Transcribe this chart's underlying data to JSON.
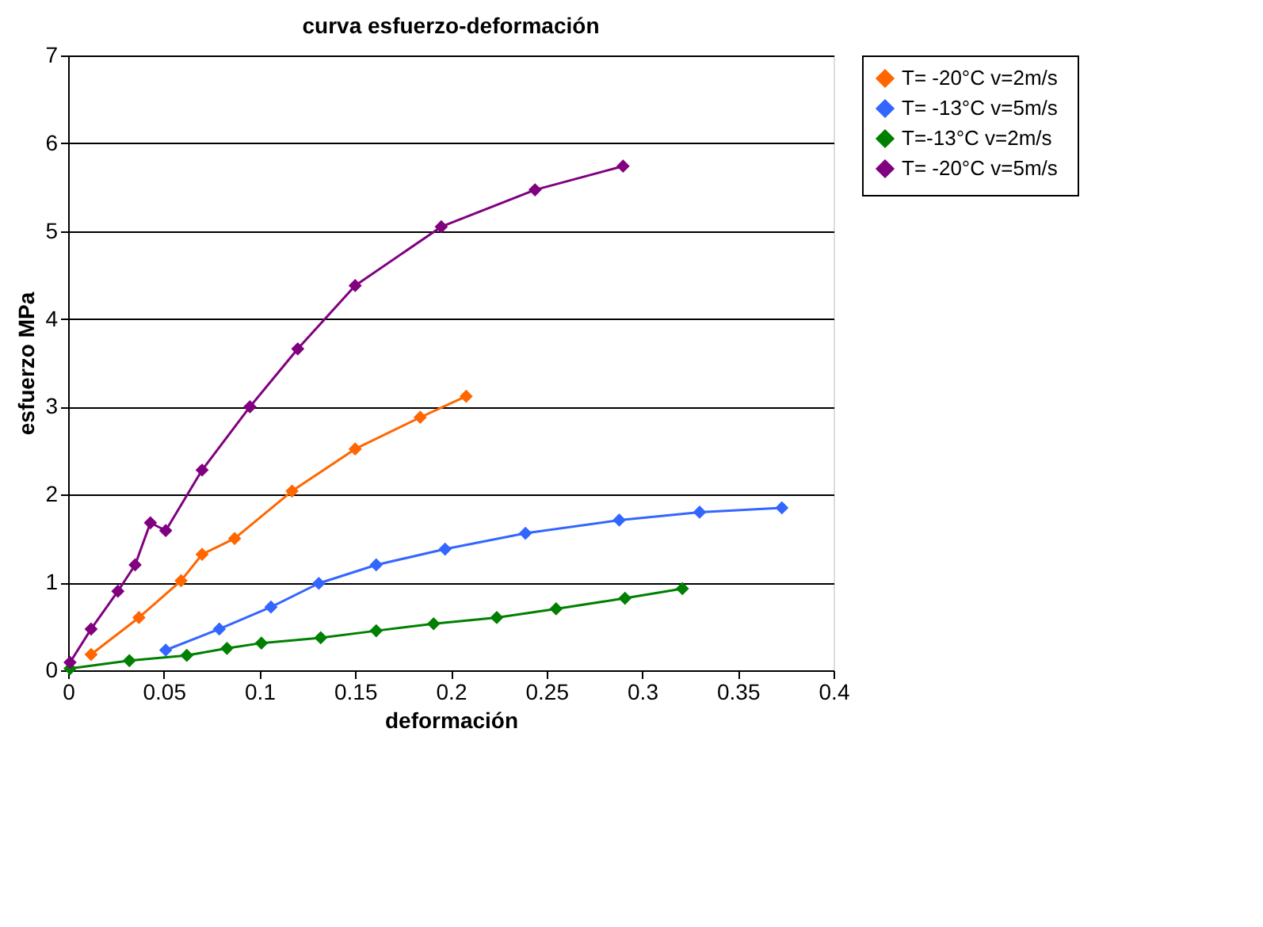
{
  "chart_data": {
    "type": "line",
    "title": "curva esfuerzo-deformación",
    "xlabel": "deformación",
    "ylabel": "esfuerzo MPa",
    "xlim": [
      0,
      0.4
    ],
    "xticks": [
      0,
      0.05,
      0.1,
      0.15,
      0.2,
      0.25,
      0.3,
      0.35,
      0.4
    ],
    "ylim": [
      0,
      7
    ],
    "yticks": [
      0,
      1,
      2,
      3,
      4,
      5,
      6,
      7
    ],
    "grid": "y",
    "legend": "right",
    "marker": "diamond",
    "line_style": "solid",
    "series": [
      {
        "name": "T= -20°C  v=2m/s",
        "color": "#ff6600",
        "x": [
          0.012,
          0.037,
          0.059,
          0.07,
          0.087,
          0.117,
          0.15,
          0.184,
          0.208
        ],
        "values": [
          0.18,
          0.6,
          1.02,
          1.32,
          1.5,
          2.04,
          2.52,
          2.88,
          3.12
        ]
      },
      {
        "name": "T= -13°C  v=5m/s",
        "color": "#3366ff",
        "x": [
          0.051,
          0.079,
          0.106,
          0.131,
          0.161,
          0.197,
          0.239,
          0.288,
          0.33,
          0.373
        ],
        "values": [
          0.23,
          0.47,
          0.72,
          0.99,
          1.2,
          1.38,
          1.56,
          1.71,
          1.8,
          1.85
        ]
      },
      {
        "name": "T=-13°C  v=2m/s",
        "color": "#008000",
        "x": [
          0.001,
          0.032,
          0.062,
          0.083,
          0.101,
          0.132,
          0.161,
          0.191,
          0.224,
          0.255,
          0.291,
          0.321
        ],
        "values": [
          0.02,
          0.11,
          0.17,
          0.25,
          0.31,
          0.37,
          0.45,
          0.53,
          0.6,
          0.7,
          0.82,
          0.93
        ]
      },
      {
        "name": "T= -20°C  v=5m/s",
        "color": "#800080",
        "x": [
          0.001,
          0.012,
          0.026,
          0.035,
          0.043,
          0.051,
          0.07,
          0.095,
          0.12,
          0.15,
          0.195,
          0.244,
          0.29
        ],
        "values": [
          0.09,
          0.47,
          0.9,
          1.2,
          1.68,
          1.59,
          2.28,
          3.0,
          3.66,
          4.38,
          5.05,
          5.47,
          5.74
        ]
      }
    ]
  }
}
